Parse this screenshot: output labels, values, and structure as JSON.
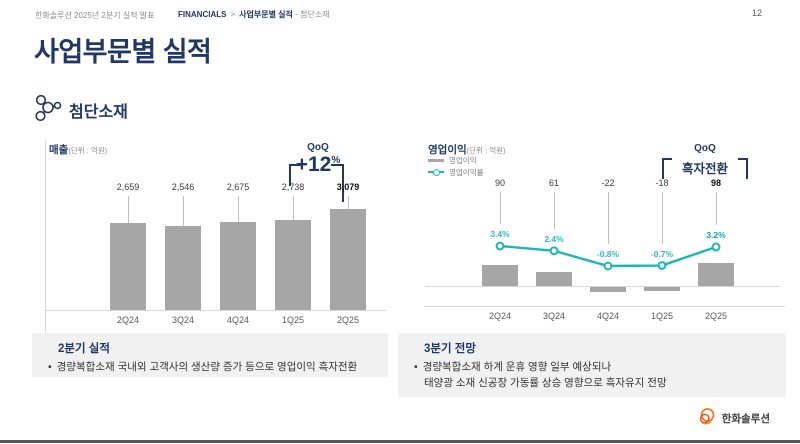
{
  "header": {
    "deck_title": "한화솔루션 2025년 2분기 실적 발표",
    "breadcrumb": {
      "section": "FINANCIALS",
      "separator": ">",
      "current": "사업부문별 실적",
      "suffix": "- 첨단소재"
    },
    "page_number": "12"
  },
  "title": "사업부문별 실적",
  "segment": {
    "label": "첨단소재"
  },
  "charts": {
    "revenue": {
      "title": "매출",
      "unit": "(단위 : 억원)",
      "qoq_label": "QoQ",
      "qoq_value": "+12",
      "qoq_unit": "%"
    },
    "profit": {
      "title": "영업이익",
      "unit": "(단위 : 억원)",
      "legend": [
        "영업이익",
        "영업이익률"
      ],
      "qoq_label": "QoQ",
      "qoq_value": "흑자전환"
    }
  },
  "chart_data": [
    {
      "type": "bar",
      "title": "매출 (단위 : 억원)",
      "categories": [
        "2Q24",
        "3Q24",
        "4Q24",
        "1Q25",
        "2Q25"
      ],
      "values": [
        2659,
        2546,
        2675,
        2738,
        3079
      ],
      "value_labels": [
        "2,659",
        "2,546",
        "2,675",
        "2,738",
        "3,079"
      ],
      "annotation": "QoQ +12%",
      "emphasis_index": 4,
      "ylim": [
        0,
        3200
      ],
      "bar_color": "#a6a6a6"
    },
    {
      "type": "bar+line",
      "title": "영업이익 (단위 : 억원)",
      "categories": [
        "2Q24",
        "3Q24",
        "4Q24",
        "1Q25",
        "2Q25"
      ],
      "series": [
        {
          "name": "영업이익",
          "type": "bar",
          "values": [
            90,
            61,
            -22,
            -18,
            98
          ],
          "value_labels": [
            "90",
            "61",
            "-22",
            "-18",
            "98"
          ]
        },
        {
          "name": "영업이익률",
          "type": "line",
          "values_pct": [
            3.4,
            2.4,
            -0.8,
            -0.7,
            3.2
          ],
          "labels": [
            "3.4%",
            "2.4%",
            "-0.8%",
            "-0.7%",
            "3.2%"
          ]
        }
      ],
      "annotation": "QoQ 흑자전환",
      "emphasis_index": 4,
      "bar_color": "#a6a6a6",
      "line_color": "#1cb5b9"
    }
  ],
  "notes": {
    "bullet_marker": "•",
    "left": {
      "heading": "2분기 실적",
      "bullet": "경량복합소재 국내외 고객사의 생산량 증가 등으로 영업이익 흑자전환"
    },
    "right": {
      "heading": "3분기 전망",
      "bullet_line1": "경량복합소재 하계 운휴 영향 일부 예상되나",
      "bullet_line2": "태양광 소재 신공장 가동률 상승 영향으로 흑자유지 전망"
    }
  },
  "footer": {
    "logo_text": "한화솔루션"
  },
  "colors": {
    "navy": "#1F3864",
    "teal": "#1cb5b9",
    "bar_gray": "#a6a6a6",
    "orange": "#F47920",
    "panel_bg": "#f1f1f2"
  }
}
